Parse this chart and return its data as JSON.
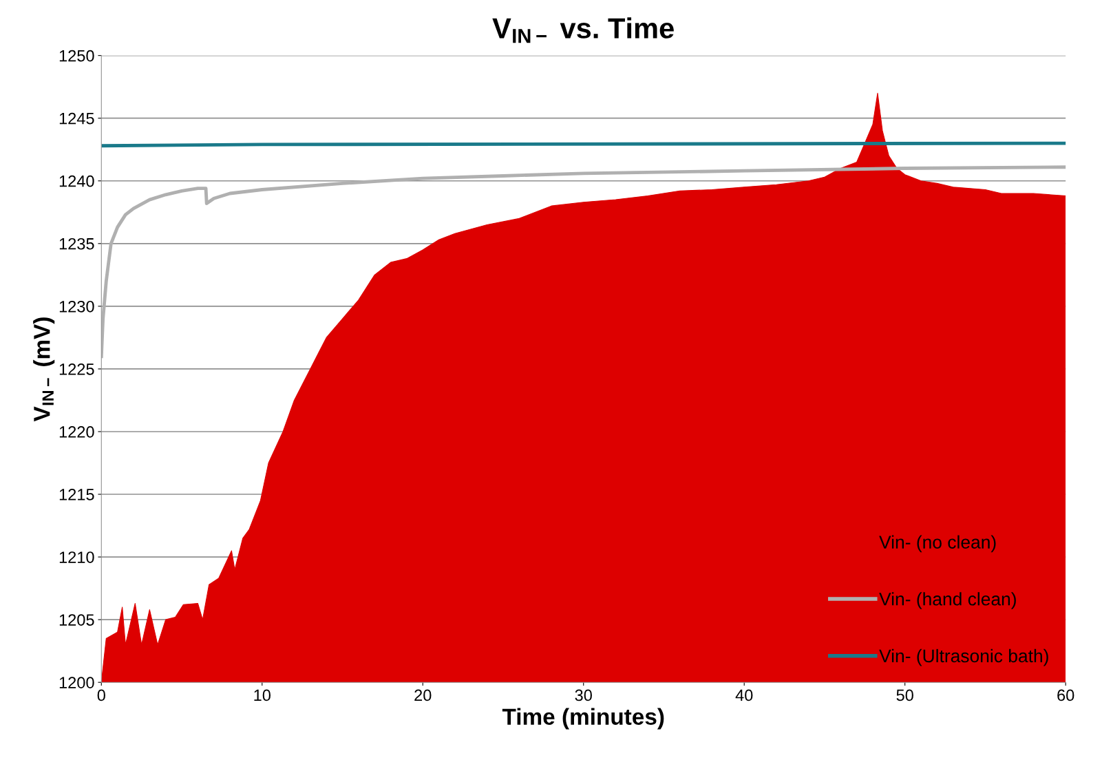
{
  "chart_data": {
    "type": "line",
    "title": "V$_{IN−}$ vs. Time",
    "xlabel": "Time (minutes)",
    "ylabel": "V$_{IN−}$ (mV)",
    "xlim": [
      0,
      60
    ],
    "xticks": [
      0,
      10,
      20,
      30,
      40,
      50,
      60
    ],
    "ylim": [
      1200,
      1250
    ],
    "yticks": [
      1200,
      1205,
      1210,
      1215,
      1220,
      1225,
      1230,
      1235,
      1240,
      1245,
      1250
    ],
    "grid": "y",
    "legend": "bottom right",
    "marker": "none",
    "line_style": "solid",
    "series": [
      {
        "name": "Vin- (no clean)",
        "type": "area",
        "color": "#dd0000",
        "x": [
          0,
          0.3,
          1,
          1.3,
          1.5,
          2.1,
          2.5,
          3,
          3.5,
          4,
          4.6,
          5.1,
          6,
          6.3,
          6.7,
          7.3,
          8.1,
          8.3,
          8.8,
          9.2,
          9.9,
          10.4,
          11.3,
          12,
          13,
          14,
          15,
          16,
          17,
          18,
          19,
          20,
          21,
          22,
          24,
          26,
          28,
          30,
          32,
          34,
          36,
          38,
          40,
          42,
          44,
          45,
          46,
          47,
          47.5,
          48,
          48.3,
          48.6,
          49,
          49.5,
          50,
          51,
          52,
          53,
          55,
          56,
          58,
          60
        ],
        "values": [
          1200,
          1203.5,
          1204,
          1206,
          1203,
          1206.3,
          1203,
          1205.8,
          1203,
          1205,
          1205.2,
          1206.2,
          1206.3,
          1205,
          1207.8,
          1208.3,
          1210.5,
          1209,
          1211.5,
          1212.2,
          1214.5,
          1217.5,
          1220,
          1222.5,
          1225,
          1227.5,
          1229,
          1230.5,
          1232.5,
          1233.5,
          1233.8,
          1234.5,
          1235.3,
          1235.8,
          1236.5,
          1237,
          1238,
          1238.3,
          1238.5,
          1238.8,
          1239.2,
          1239.3,
          1239.5,
          1239.7,
          1240,
          1240.3,
          1241,
          1241.5,
          1243,
          1244.5,
          1247,
          1244,
          1242,
          1241,
          1240.5,
          1240,
          1239.8,
          1239.5,
          1239.3,
          1239,
          1239,
          1238.8
        ]
      },
      {
        "name": "Vin- (hand clean)",
        "color": "#b0b0b0",
        "x": [
          0,
          0.1,
          0.3,
          0.6,
          1,
          1.5,
          2,
          3,
          4,
          5,
          6,
          6.5,
          6.55,
          7,
          8,
          10,
          15,
          20,
          25,
          30,
          40,
          50,
          60
        ],
        "values": [
          1226,
          1229,
          1232,
          1235,
          1236.3,
          1237.3,
          1237.8,
          1238.5,
          1238.9,
          1239.2,
          1239.4,
          1239.4,
          1238.2,
          1238.6,
          1239,
          1239.3,
          1239.8,
          1240.2,
          1240.4,
          1240.6,
          1240.8,
          1241,
          1241.1
        ]
      },
      {
        "name": "Vin- (Ultrasonic bath)",
        "color": "#1a7a8a",
        "x": [
          0,
          10,
          60
        ],
        "values": [
          1242.8,
          1242.9,
          1243
        ]
      }
    ]
  }
}
